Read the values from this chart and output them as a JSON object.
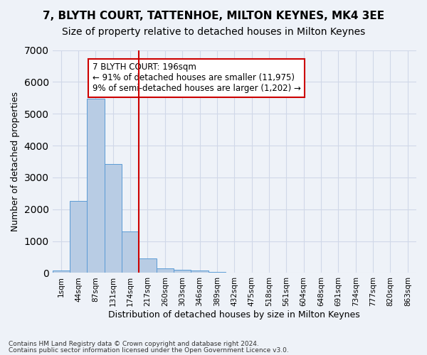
{
  "title": "7, BLYTH COURT, TATTENHOE, MILTON KEYNES, MK4 3EE",
  "subtitle": "Size of property relative to detached houses in Milton Keynes",
  "xlabel": "Distribution of detached houses by size in Milton Keynes",
  "ylabel": "Number of detached properties",
  "footnote1": "Contains HM Land Registry data © Crown copyright and database right 2024.",
  "footnote2": "Contains public sector information licensed under the Open Government Licence v3.0.",
  "bar_color": "#b8cce4",
  "bar_edge_color": "#5b9bd5",
  "annotation_text": "7 BLYTH COURT: 196sqm\n← 91% of detached houses are smaller (11,975)\n9% of semi-detached houses are larger (1,202) →",
  "annotation_box_color": "#ffffff",
  "annotation_box_edge": "#cc0000",
  "vline_color": "#cc0000",
  "vline_x": 4.5,
  "bin_labels": [
    "1sqm",
    "44sqm",
    "87sqm",
    "131sqm",
    "174sqm",
    "217sqm",
    "260sqm",
    "303sqm",
    "346sqm",
    "389sqm",
    "432sqm",
    "475sqm",
    "518sqm",
    "561sqm",
    "604sqm",
    "648sqm",
    "691sqm",
    "734sqm",
    "777sqm",
    "820sqm",
    "863sqm"
  ],
  "bar_values": [
    75,
    2270,
    5470,
    3430,
    1310,
    460,
    155,
    90,
    70,
    40,
    0,
    0,
    0,
    0,
    0,
    0,
    0,
    0,
    0,
    0,
    0
  ],
  "ylim": [
    0,
    7000
  ],
  "yticks": [
    0,
    1000,
    2000,
    3000,
    4000,
    5000,
    6000,
    7000
  ],
  "grid_color": "#d0d8e8",
  "bg_color": "#eef2f8",
  "title_fontsize": 11,
  "subtitle_fontsize": 10
}
